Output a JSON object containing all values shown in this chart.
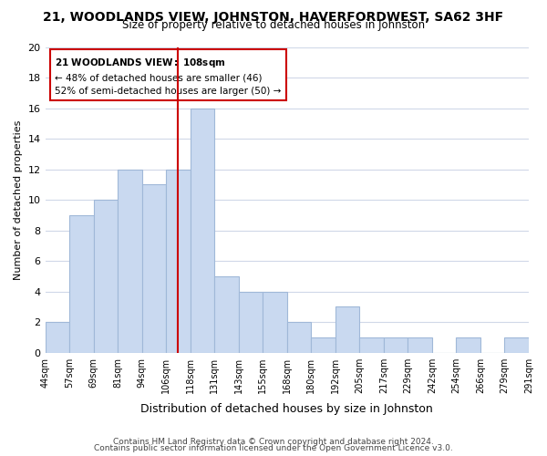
{
  "title_main": "21, WOODLANDS VIEW, JOHNSTON, HAVERFORDWEST, SA62 3HF",
  "title_sub": "Size of property relative to detached houses in Johnston",
  "xlabel": "Distribution of detached houses by size in Johnston",
  "ylabel": "Number of detached properties",
  "bin_labels": [
    "44sqm",
    "57sqm",
    "69sqm",
    "81sqm",
    "94sqm",
    "106sqm",
    "118sqm",
    "131sqm",
    "143sqm",
    "155sqm",
    "168sqm",
    "180sqm",
    "192sqm",
    "205sqm",
    "217sqm",
    "229sqm",
    "242sqm",
    "254sqm",
    "266sqm",
    "279sqm",
    "291sqm"
  ],
  "bar_values": [
    2,
    9,
    10,
    12,
    11,
    12,
    16,
    5,
    4,
    4,
    2,
    1,
    3,
    1,
    1,
    1,
    0,
    1,
    0,
    1
  ],
  "bar_color": "#c9d9f0",
  "bar_edge_color": "#a0b8d8",
  "vline_x": 5.5,
  "vline_color": "#cc0000",
  "ylim": [
    0,
    20
  ],
  "yticks": [
    0,
    2,
    4,
    6,
    8,
    10,
    12,
    14,
    16,
    18,
    20
  ],
  "annotation_title": "21 WOODLANDS VIEW: 108sqm",
  "annotation_line1": "← 48% of detached houses are smaller (46)",
  "annotation_line2": "52% of semi-detached houses are larger (50) →",
  "footer1": "Contains HM Land Registry data © Crown copyright and database right 2024.",
  "footer2": "Contains public sector information licensed under the Open Government Licence v3.0.",
  "bg_color": "#ffffff",
  "grid_color": "#d0d8e8"
}
